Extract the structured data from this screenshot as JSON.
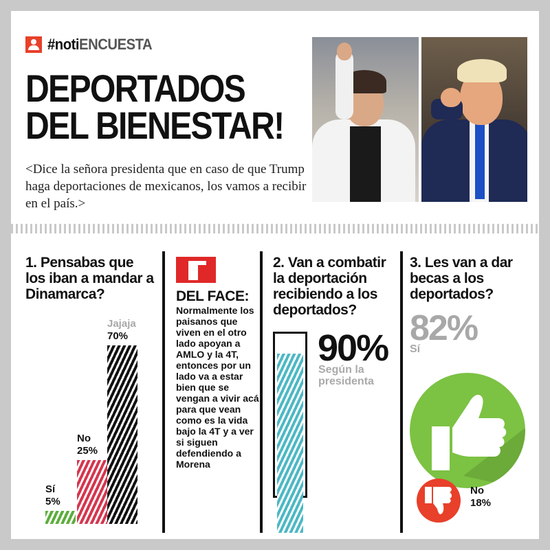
{
  "brand": {
    "hashtag": "#noti",
    "suffix": "ENCUESTA"
  },
  "headline": {
    "line1": "DEPORTADOS",
    "line2": "DEL BIENESTAR!"
  },
  "subtitle": "<Dice la señora presidenta que en caso de que Trump haga deportaciones de mexicanos, los vamos a recibir en el país.>",
  "q1": {
    "question": "1. Pensabas que los iban a mandar a Dinamarca?",
    "options": [
      {
        "label": "Sí",
        "percent": "5%",
        "value": 5,
        "color": "#5cae3c"
      },
      {
        "label": "No",
        "percent": "25%",
        "value": 25,
        "color": "#d5364f"
      },
      {
        "label": "Jajaja",
        "percent": "70%",
        "value": 70,
        "color": "#111111"
      }
    ]
  },
  "face": {
    "title": "DEL FACE:",
    "body": "Normalmente los paisanos que viven en el otro lado apoyan a AMLO y la 4T, entonces por un lado va a estar bien que se vengan a vivir acá para que vean como es la vida bajo la 4T y a ver si siguen defendiendo a Morena"
  },
  "q2": {
    "question": "2. Van a combatir la deportación recibiendo a los deportados?",
    "percent": "90%",
    "value": 90,
    "caption": "Según la presidenta",
    "color": "#4cb8c4"
  },
  "q3": {
    "question": "3. Les van a dar becas a los deportados?",
    "yes_percent": "82%",
    "yes_label": "Sí",
    "yes_value": 82,
    "no_label": "No",
    "no_percent": "18%",
    "no_value": 18,
    "yes_color": "#7cc243",
    "no_color": "#e8402a"
  }
}
